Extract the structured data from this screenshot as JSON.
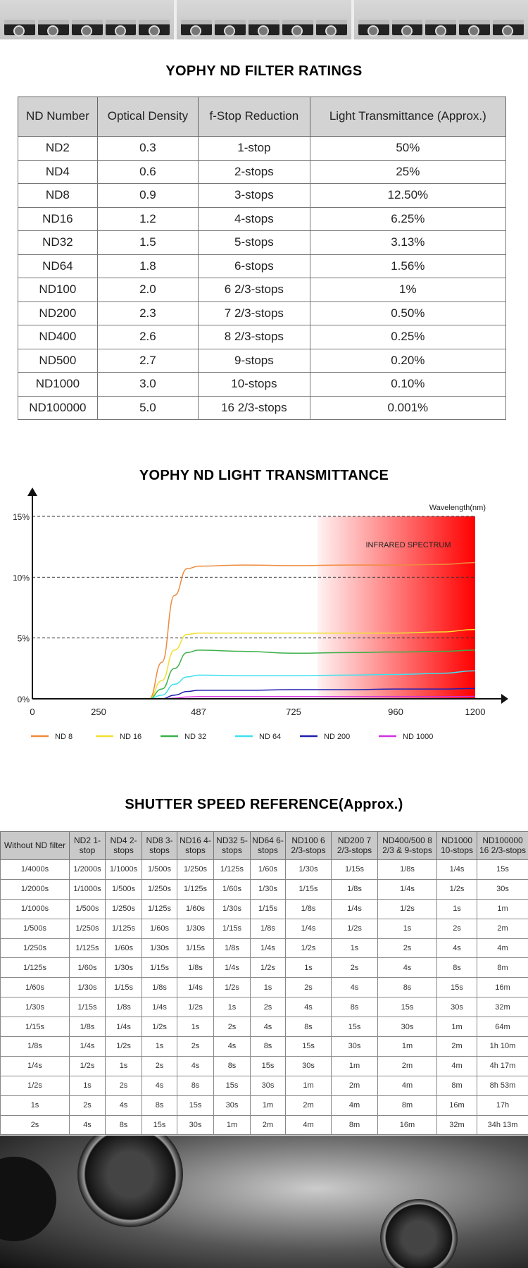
{
  "ratings": {
    "title": "YOPHY ND FILTER  RATINGS",
    "headers": [
      "ND Number",
      "Optical Density",
      "f-Stop Reduction",
      "Light Transmittance (Approx.)"
    ],
    "rows": [
      [
        "ND2",
        "0.3",
        "1-stop",
        "50%"
      ],
      [
        "ND4",
        "0.6",
        "2-stops",
        "25%"
      ],
      [
        "ND8",
        "0.9",
        "3-stops",
        "12.50%"
      ],
      [
        "ND16",
        "1.2",
        "4-stops",
        "6.25%"
      ],
      [
        "ND32",
        "1.5",
        "5-stops",
        "3.13%"
      ],
      [
        "ND64",
        "1.8",
        "6-stops",
        "1.56%"
      ],
      [
        "ND100",
        "2.0",
        "6 2/3-stops",
        "1%"
      ],
      [
        "ND200",
        "2.3",
        "7 2/3-stops",
        "0.50%"
      ],
      [
        "ND400",
        "2.6",
        "8 2/3-stops",
        "0.25%"
      ],
      [
        "ND500",
        "2.7",
        "9-stops",
        "0.20%"
      ],
      [
        "ND1000",
        "3.0",
        "10-stops",
        "0.10%"
      ],
      [
        "ND100000",
        "5.0",
        "16 2/3-stops",
        "0.001%"
      ]
    ]
  },
  "chart_data": {
    "type": "line",
    "title": "YOPHY ND LIGHT TRANSMITTANCE",
    "xlabel": "Wavelength(nm)",
    "ylabel": "",
    "x_ticks": [
      0,
      250,
      487,
      725,
      960,
      1200
    ],
    "y_ticks": [
      "0%",
      "5%",
      "10%",
      "15%"
    ],
    "y_tick_values": [
      0,
      5,
      10,
      15
    ],
    "ylim": [
      0,
      15
    ],
    "grid": "dashed horizontal at 5,10,15",
    "annotation": "INFRARED  SPECTRUM",
    "infrared_start_nm": 780,
    "legend_position": "bottom",
    "x": [
      0,
      250,
      370,
      400,
      430,
      460,
      487,
      600,
      725,
      850,
      960,
      1100,
      1200
    ],
    "series": [
      {
        "name": "ND 8",
        "color": "#f08a3c",
        "values": [
          0,
          0,
          0,
          3,
          8.5,
          10.7,
          10.9,
          11,
          10.95,
          11,
          11,
          11.05,
          11.2
        ]
      },
      {
        "name": "ND 16",
        "color": "#f0e030",
        "values": [
          0,
          0,
          0,
          1.5,
          4,
          5.3,
          5.4,
          5.4,
          5.4,
          5.4,
          5.4,
          5.5,
          5.7
        ]
      },
      {
        "name": "ND 32",
        "color": "#3cb04a",
        "values": [
          0,
          0,
          0,
          0.8,
          2.5,
          3.8,
          4,
          3.9,
          3.75,
          3.8,
          3.85,
          3.9,
          4
        ]
      },
      {
        "name": "ND 64",
        "color": "#40e0f0",
        "values": [
          0,
          0,
          0,
          0.3,
          1.2,
          1.8,
          1.95,
          1.9,
          1.9,
          1.95,
          2,
          2.1,
          2.3
        ]
      },
      {
        "name": "ND 200",
        "color": "#2020b0",
        "values": [
          0,
          0,
          0,
          0,
          0.3,
          0.6,
          0.7,
          0.7,
          0.75,
          0.75,
          0.8,
          0.8,
          0.85
        ]
      },
      {
        "name": "ND 1000",
        "color": "#d030e0",
        "values": [
          0,
          0,
          0,
          0,
          0.05,
          0.15,
          0.18,
          0.18,
          0.18,
          0.18,
          0.18,
          0.18,
          0.2
        ]
      }
    ]
  },
  "shutter": {
    "title": "SHUTTER SPEED REFERENCE(Approx.)",
    "headers": [
      "Without ND filter",
      "ND2 1-stop",
      "ND4 2-stops",
      "ND8 3-stops",
      "ND16 4-stops",
      "ND32 5-stops",
      "ND64 6-stops",
      "ND100 6 2/3-stops",
      "ND200 7 2/3-stops",
      "ND400/500 8 2/3 & 9-stops",
      "ND1000 10-stops",
      "ND100000 16 2/3-stops"
    ],
    "rows": [
      [
        "1/4000s",
        "1/2000s",
        "1/1000s",
        "1/500s",
        "1/250s",
        "1/125s",
        "1/60s",
        "1/30s",
        "1/15s",
        "1/8s",
        "1/4s",
        "15s"
      ],
      [
        "1/2000s",
        "1/1000s",
        "1/500s",
        "1/250s",
        "1/125s",
        "1/60s",
        "1/30s",
        "1/15s",
        "1/8s",
        "1/4s",
        "1/2s",
        "30s"
      ],
      [
        "1/1000s",
        "1/500s",
        "1/250s",
        "1/125s",
        "1/60s",
        "1/30s",
        "1/15s",
        "1/8s",
        "1/4s",
        "1/2s",
        "1s",
        "1m"
      ],
      [
        "1/500s",
        "1/250s",
        "1/125s",
        "1/60s",
        "1/30s",
        "1/15s",
        "1/8s",
        "1/4s",
        "1/2s",
        "1s",
        "2s",
        "2m"
      ],
      [
        "1/250s",
        "1/125s",
        "1/60s",
        "1/30s",
        "1/15s",
        "1/8s",
        "1/4s",
        "1/2s",
        "1s",
        "2s",
        "4s",
        "4m"
      ],
      [
        "1/125s",
        "1/60s",
        "1/30s",
        "1/15s",
        "1/8s",
        "1/4s",
        "1/2s",
        "1s",
        "2s",
        "4s",
        "8s",
        "8m"
      ],
      [
        "1/60s",
        "1/30s",
        "1/15s",
        "1/8s",
        "1/4s",
        "1/2s",
        "1s",
        "2s",
        "4s",
        "8s",
        "15s",
        "16m"
      ],
      [
        "1/30s",
        "1/15s",
        "1/8s",
        "1/4s",
        "1/2s",
        "1s",
        "2s",
        "4s",
        "8s",
        "15s",
        "30s",
        "32m"
      ],
      [
        "1/15s",
        "1/8s",
        "1/4s",
        "1/2s",
        "1s",
        "2s",
        "4s",
        "8s",
        "15s",
        "30s",
        "1m",
        "64m"
      ],
      [
        "1/8s",
        "1/4s",
        "1/2s",
        "1s",
        "2s",
        "4s",
        "8s",
        "15s",
        "30s",
        "1m",
        "2m",
        "1h 10m"
      ],
      [
        "1/4s",
        "1/2s",
        "1s",
        "2s",
        "4s",
        "8s",
        "15s",
        "30s",
        "1m",
        "2m",
        "4m",
        "4h 17m"
      ],
      [
        "1/2s",
        "1s",
        "2s",
        "4s",
        "8s",
        "15s",
        "30s",
        "1m",
        "2m",
        "4m",
        "8m",
        "8h 53m"
      ],
      [
        "1s",
        "2s",
        "4s",
        "8s",
        "15s",
        "30s",
        "1m",
        "2m",
        "4m",
        "8m",
        "16m",
        "17h"
      ],
      [
        "2s",
        "4s",
        "8s",
        "15s",
        "30s",
        "1m",
        "2m",
        "4m",
        "8m",
        "16m",
        "32m",
        "34h 13m"
      ]
    ]
  }
}
